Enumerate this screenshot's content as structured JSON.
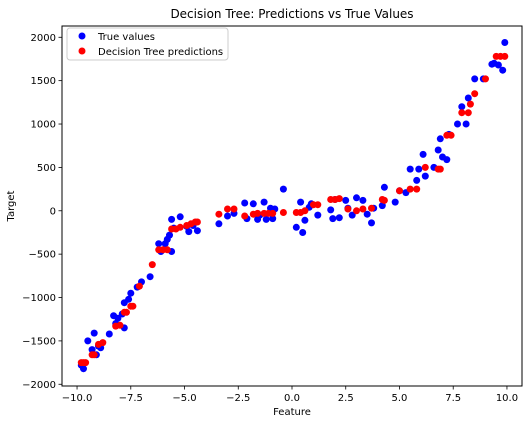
{
  "chart_data": {
    "type": "scatter",
    "title": "Decision Tree: Predictions vs True Values",
    "xlabel": "Feature",
    "ylabel": "Target",
    "xlim": [
      -10.7,
      10.7
    ],
    "ylim": [
      -2020,
      2130
    ],
    "xticks": [
      -10.0,
      -7.5,
      -5.0,
      -2.5,
      0.0,
      2.5,
      5.0,
      7.5,
      10.0
    ],
    "xtick_labels": [
      "−10.0",
      "−7.5",
      "−5.0",
      "−2.5",
      "0.0",
      "2.5",
      "5.0",
      "7.5",
      "10.0"
    ],
    "yticks": [
      -2000,
      -1500,
      -1000,
      -500,
      0,
      500,
      1000,
      1500,
      2000
    ],
    "ytick_labels": [
      "−2000",
      "−1500",
      "−1000",
      "−500",
      "0",
      "500",
      "1000",
      "1500",
      "2000"
    ],
    "grid": false,
    "legend_position": "top-left",
    "series": [
      {
        "name": "True values",
        "color": "#0000ff",
        "points": [
          [
            -9.8,
            -1780
          ],
          [
            -9.7,
            -1820
          ],
          [
            -9.5,
            -1500
          ],
          [
            -9.3,
            -1600
          ],
          [
            -9.2,
            -1410
          ],
          [
            -9.1,
            -1660
          ],
          [
            -9.0,
            -1560
          ],
          [
            -8.9,
            -1580
          ],
          [
            -8.5,
            -1420
          ],
          [
            -8.3,
            -1210
          ],
          [
            -8.2,
            -1300
          ],
          [
            -8.1,
            -1240
          ],
          [
            -7.9,
            -1190
          ],
          [
            -7.8,
            -1350
          ],
          [
            -7.8,
            -1060
          ],
          [
            -7.6,
            -1020
          ],
          [
            -7.5,
            -950
          ],
          [
            -7.2,
            -880
          ],
          [
            -7.0,
            -820
          ],
          [
            -6.6,
            -760
          ],
          [
            -6.2,
            -380
          ],
          [
            -6.1,
            -470
          ],
          [
            -5.9,
            -380
          ],
          [
            -5.8,
            -330
          ],
          [
            -5.7,
            -280
          ],
          [
            -5.6,
            -470
          ],
          [
            -5.6,
            -100
          ],
          [
            -5.5,
            -200
          ],
          [
            -5.2,
            -70
          ],
          [
            -4.9,
            -180
          ],
          [
            -4.8,
            -240
          ],
          [
            -4.6,
            -170
          ],
          [
            -4.4,
            -230
          ],
          [
            -3.4,
            -150
          ],
          [
            -3.0,
            -60
          ],
          [
            -2.7,
            -30
          ],
          [
            -2.2,
            90
          ],
          [
            -2.1,
            -90
          ],
          [
            -1.8,
            80
          ],
          [
            -1.6,
            -100
          ],
          [
            -1.5,
            -50
          ],
          [
            -1.3,
            100
          ],
          [
            -1.2,
            -100
          ],
          [
            -1.0,
            30
          ],
          [
            -0.9,
            -90
          ],
          [
            -0.8,
            20
          ],
          [
            -0.4,
            250
          ],
          [
            0.2,
            -190
          ],
          [
            0.4,
            100
          ],
          [
            0.5,
            -250
          ],
          [
            0.6,
            -110
          ],
          [
            0.8,
            40
          ],
          [
            0.9,
            80
          ],
          [
            1.2,
            -50
          ],
          [
            1.8,
            10
          ],
          [
            1.9,
            -90
          ],
          [
            2.0,
            130
          ],
          [
            2.2,
            -80
          ],
          [
            2.5,
            120
          ],
          [
            2.6,
            30
          ],
          [
            2.8,
            -50
          ],
          [
            3.0,
            150
          ],
          [
            3.3,
            120
          ],
          [
            3.5,
            -40
          ],
          [
            3.7,
            -140
          ],
          [
            3.8,
            30
          ],
          [
            4.2,
            60
          ],
          [
            4.3,
            270
          ],
          [
            4.8,
            100
          ],
          [
            5.0,
            230
          ],
          [
            5.3,
            210
          ],
          [
            5.5,
            480
          ],
          [
            5.8,
            350
          ],
          [
            5.9,
            480
          ],
          [
            6.1,
            650
          ],
          [
            6.2,
            400
          ],
          [
            6.6,
            500
          ],
          [
            6.8,
            700
          ],
          [
            6.9,
            830
          ],
          [
            7.0,
            620
          ],
          [
            7.2,
            590
          ],
          [
            7.3,
            880
          ],
          [
            7.7,
            1000
          ],
          [
            7.9,
            1200
          ],
          [
            8.1,
            1000
          ],
          [
            8.2,
            1300
          ],
          [
            8.5,
            1520
          ],
          [
            8.9,
            1520
          ],
          [
            9.3,
            1690
          ],
          [
            9.4,
            1700
          ],
          [
            9.6,
            1680
          ],
          [
            9.8,
            1620
          ],
          [
            9.9,
            1940
          ]
        ]
      },
      {
        "name": "Decision Tree predictions",
        "color": "#ff0000",
        "points": [
          [
            -9.8,
            -1750
          ],
          [
            -9.7,
            -1750
          ],
          [
            -9.6,
            -1750
          ],
          [
            -9.3,
            -1660
          ],
          [
            -9.2,
            -1660
          ],
          [
            -9.0,
            -1540
          ],
          [
            -8.8,
            -1520
          ],
          [
            -8.2,
            -1330
          ],
          [
            -8.0,
            -1320
          ],
          [
            -7.8,
            -1170
          ],
          [
            -7.7,
            -1170
          ],
          [
            -7.5,
            -1100
          ],
          [
            -7.4,
            -1100
          ],
          [
            -7.1,
            -870
          ],
          [
            -6.5,
            -620
          ],
          [
            -6.2,
            -450
          ],
          [
            -6.0,
            -450
          ],
          [
            -5.8,
            -450
          ],
          [
            -5.6,
            -210
          ],
          [
            -5.4,
            -210
          ],
          [
            -5.2,
            -190
          ],
          [
            -4.9,
            -170
          ],
          [
            -4.7,
            -150
          ],
          [
            -4.5,
            -130
          ],
          [
            -4.4,
            -130
          ],
          [
            -3.4,
            -40
          ],
          [
            -3.0,
            20
          ],
          [
            -2.7,
            20
          ],
          [
            -2.2,
            -60
          ],
          [
            -1.8,
            -40
          ],
          [
            -1.6,
            -30
          ],
          [
            -1.3,
            -30
          ],
          [
            -1.1,
            -30
          ],
          [
            -0.9,
            -30
          ],
          [
            -0.4,
            -20
          ],
          [
            0.2,
            -20
          ],
          [
            0.4,
            -20
          ],
          [
            0.6,
            0
          ],
          [
            1.0,
            70
          ],
          [
            1.2,
            70
          ],
          [
            1.8,
            130
          ],
          [
            2.0,
            130
          ],
          [
            2.2,
            140
          ],
          [
            2.6,
            20
          ],
          [
            3.0,
            0
          ],
          [
            3.3,
            20
          ],
          [
            3.7,
            30
          ],
          [
            4.2,
            130
          ],
          [
            4.3,
            120
          ],
          [
            5.0,
            230
          ],
          [
            5.5,
            250
          ],
          [
            5.8,
            250
          ],
          [
            6.2,
            500
          ],
          [
            6.8,
            480
          ],
          [
            6.9,
            480
          ],
          [
            7.2,
            870
          ],
          [
            7.4,
            870
          ],
          [
            7.9,
            1130
          ],
          [
            8.2,
            1130
          ],
          [
            8.3,
            1230
          ],
          [
            8.5,
            1350
          ],
          [
            9.0,
            1520
          ],
          [
            9.5,
            1780
          ],
          [
            9.7,
            1780
          ],
          [
            9.9,
            1780
          ]
        ]
      }
    ]
  }
}
